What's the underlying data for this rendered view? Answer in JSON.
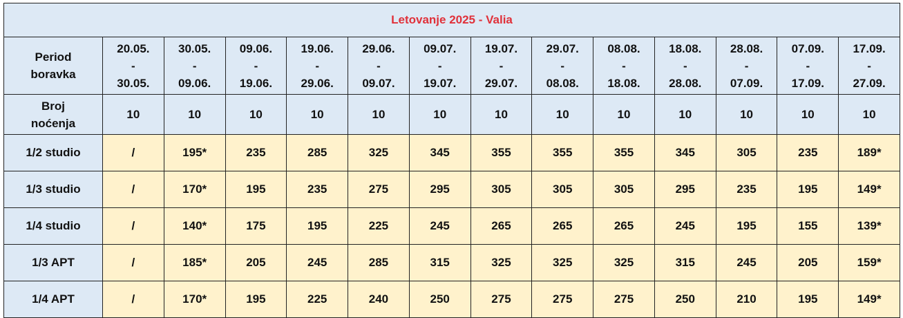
{
  "title": "Letovanje 2025 - Valia",
  "header": {
    "label": "Period boravka",
    "periods": [
      [
        "20.05.",
        "-",
        "30.05."
      ],
      [
        "30.05.",
        "-",
        "09.06."
      ],
      [
        "09.06.",
        "-",
        "19.06."
      ],
      [
        "19.06.",
        "-",
        "29.06."
      ],
      [
        "29.06.",
        "-",
        "09.07."
      ],
      [
        "09.07.",
        "-",
        "19.07."
      ],
      [
        "19.07.",
        "-",
        "29.07."
      ],
      [
        "29.07.",
        "-",
        "08.08."
      ],
      [
        "08.08.",
        "-",
        "18.08."
      ],
      [
        "18.08.",
        "-",
        "28.08."
      ],
      [
        "28.08.",
        "-",
        "07.09."
      ],
      [
        "07.09.",
        "-",
        "17.09."
      ],
      [
        "17.09.",
        "-",
        "27.09."
      ]
    ]
  },
  "nights": {
    "label": "Broj noćenja",
    "values": [
      10,
      10,
      10,
      10,
      10,
      10,
      10,
      10,
      10,
      10,
      10,
      10,
      10
    ]
  },
  "rows": [
    {
      "label": "1/2 studio",
      "cells": [
        "/",
        "195*",
        235,
        285,
        325,
        345,
        355,
        355,
        355,
        345,
        305,
        235,
        "189*"
      ]
    },
    {
      "label": "1/3 studio",
      "cells": [
        "/",
        "170*",
        195,
        235,
        275,
        295,
        305,
        305,
        305,
        295,
        235,
        195,
        "149*"
      ]
    },
    {
      "label": "1/4 studio",
      "cells": [
        "/",
        "140*",
        175,
        195,
        225,
        245,
        265,
        265,
        265,
        245,
        195,
        155,
        "139*"
      ]
    },
    {
      "label": "1/3 APT",
      "cells": [
        "/",
        "185*",
        205,
        245,
        285,
        315,
        325,
        325,
        325,
        315,
        245,
        205,
        "159*"
      ]
    },
    {
      "label": "1/4 APT",
      "cells": [
        "/",
        "170*",
        195,
        225,
        240,
        250,
        275,
        275,
        275,
        250,
        210,
        195,
        "149*"
      ]
    }
  ]
}
